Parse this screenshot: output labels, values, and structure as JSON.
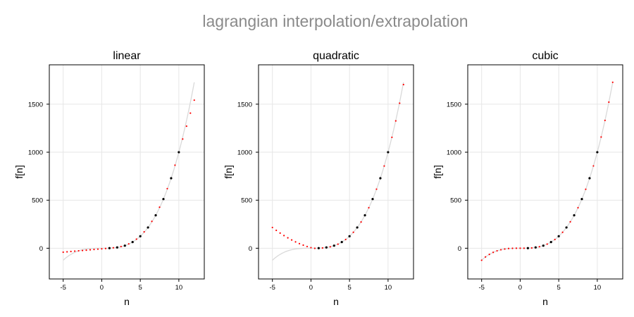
{
  "figure_title": "lagrangian interpolation/extrapolation",
  "colors": {
    "true_curve": "#d9d9d9",
    "known_points": "#000000",
    "estimated_points": "#ff0000",
    "grid": "#e6e6e6",
    "frame": "#000000",
    "title": "#8a8a8a"
  },
  "chart_data": [
    {
      "type": "scatter",
      "title": "linear",
      "xlabel": "n",
      "ylabel": "f[n]",
      "xlim": [
        -6.8,
        13.3
      ],
      "ylim": [
        -320,
        1910
      ],
      "xticks": [
        -5,
        0,
        5,
        10
      ],
      "yticks": [
        0,
        500,
        1000,
        1500
      ],
      "grid": true,
      "true_curve": {
        "function": "n^3",
        "x_range": [
          -5,
          12
        ]
      },
      "known_points": {
        "x": [
          1,
          2,
          3,
          4,
          5,
          6,
          7,
          8,
          9,
          10
        ],
        "y": [
          1,
          8,
          27,
          64,
          125,
          216,
          343,
          512,
          729,
          1000
        ]
      },
      "estimated_points": {
        "x": [
          -5,
          -4.5,
          -4,
          -3.5,
          -3,
          -2.5,
          -2,
          -1.5,
          -1,
          -0.5,
          0,
          0.5,
          1.5,
          2.5,
          3.5,
          4.5,
          5.5,
          6.5,
          7.5,
          8.5,
          9.5,
          10.5,
          11,
          11.5,
          12
        ],
        "y": [
          -41,
          -37.5,
          -34,
          -30.5,
          -27,
          -23.5,
          -20,
          -16.5,
          -13,
          -9.5,
          -6,
          -2.5,
          4.5,
          17.5,
          45.5,
          94.5,
          170.5,
          279.5,
          427.5,
          620.5,
          864.5,
          1137,
          1271,
          1407,
          1542
        ]
      }
    },
    {
      "type": "scatter",
      "title": "quadratic",
      "xlabel": "n",
      "ylabel": "f[n]",
      "xlim": [
        -6.8,
        13.3
      ],
      "ylim": [
        -320,
        1910
      ],
      "xticks": [
        -5,
        0,
        5,
        10
      ],
      "yticks": [
        0,
        500,
        1000,
        1500
      ],
      "grid": true,
      "true_curve": {
        "function": "n^3",
        "x_range": [
          -5,
          12
        ]
      },
      "known_points": {
        "x": [
          1,
          2,
          3,
          4,
          5,
          6,
          7,
          8,
          9,
          10
        ],
        "y": [
          1,
          8,
          27,
          64,
          125,
          216,
          343,
          512,
          729,
          1000
        ]
      },
      "estimated_points": {
        "x": [
          -5,
          -4.5,
          -4,
          -3.5,
          -3,
          -2.5,
          -2,
          -1.5,
          -1,
          -0.5,
          0,
          0.5,
          1.5,
          2.5,
          3.5,
          4.5,
          5.5,
          6.5,
          7.5,
          8.5,
          9.5,
          10.5,
          11,
          11.5,
          12
        ],
        "y": [
          216,
          186,
          158,
          132,
          108,
          86,
          66,
          48,
          32,
          18,
          6,
          -1,
          3,
          15,
          42,
          91,
          166,
          273,
          422,
          615,
          856,
          1155,
          1326,
          1510,
          1704
        ]
      }
    },
    {
      "type": "scatter",
      "title": "cubic",
      "xlabel": "n",
      "ylabel": "f[n]",
      "xlim": [
        -6.8,
        13.3
      ],
      "ylim": [
        -320,
        1910
      ],
      "xticks": [
        -5,
        0,
        5,
        10
      ],
      "yticks": [
        0,
        500,
        1000,
        1500
      ],
      "grid": true,
      "true_curve": {
        "function": "n^3",
        "x_range": [
          -5,
          12
        ]
      },
      "known_points": {
        "x": [
          1,
          2,
          3,
          4,
          5,
          6,
          7,
          8,
          9,
          10
        ],
        "y": [
          1,
          8,
          27,
          64,
          125,
          216,
          343,
          512,
          729,
          1000
        ]
      },
      "estimated_points": {
        "x": [
          -5,
          -4.5,
          -4,
          -3.5,
          -3,
          -2.5,
          -2,
          -1.5,
          -1,
          -0.5,
          0,
          0.5,
          1.5,
          2.5,
          3.5,
          4.5,
          5.5,
          6.5,
          7.5,
          8.5,
          9.5,
          10.5,
          11,
          11.5,
          12
        ],
        "y": [
          -125,
          -91,
          -64,
          -43,
          -27,
          -16,
          -8,
          -3,
          -1,
          0,
          0,
          0,
          3,
          16,
          43,
          91,
          166,
          275,
          422,
          614,
          857,
          1158,
          1331,
          1521,
          1728
        ]
      }
    }
  ]
}
